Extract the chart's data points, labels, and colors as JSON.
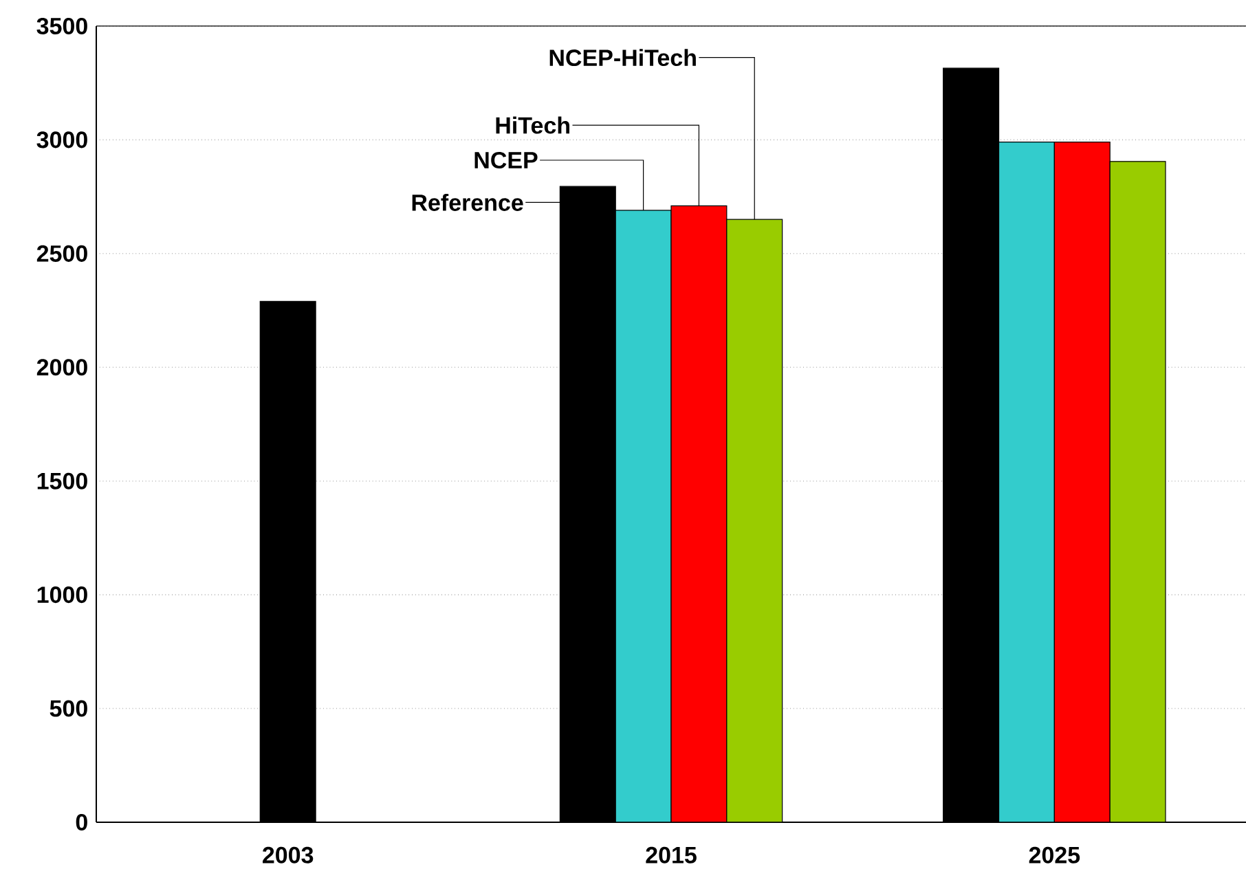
{
  "chart_data": {
    "type": "bar",
    "categories": [
      "2003",
      "2015",
      "2025"
    ],
    "series": [
      {
        "name": "Reference",
        "color": "#000000",
        "values": [
          2290,
          2795,
          3315
        ]
      },
      {
        "name": "NCEP",
        "color": "#33cccc",
        "values": [
          null,
          2690,
          2990
        ]
      },
      {
        "name": "HiTech",
        "color": "#ff0000",
        "values": [
          null,
          2710,
          2990
        ]
      },
      {
        "name": "NCEP-HiTech",
        "color": "#99cc00",
        "values": [
          null,
          2650,
          2905
        ]
      }
    ],
    "ylim": [
      0,
      3500
    ],
    "yticks": [
      0,
      500,
      1000,
      1500,
      2000,
      2500,
      3000,
      3500
    ],
    "grid": "y"
  }
}
